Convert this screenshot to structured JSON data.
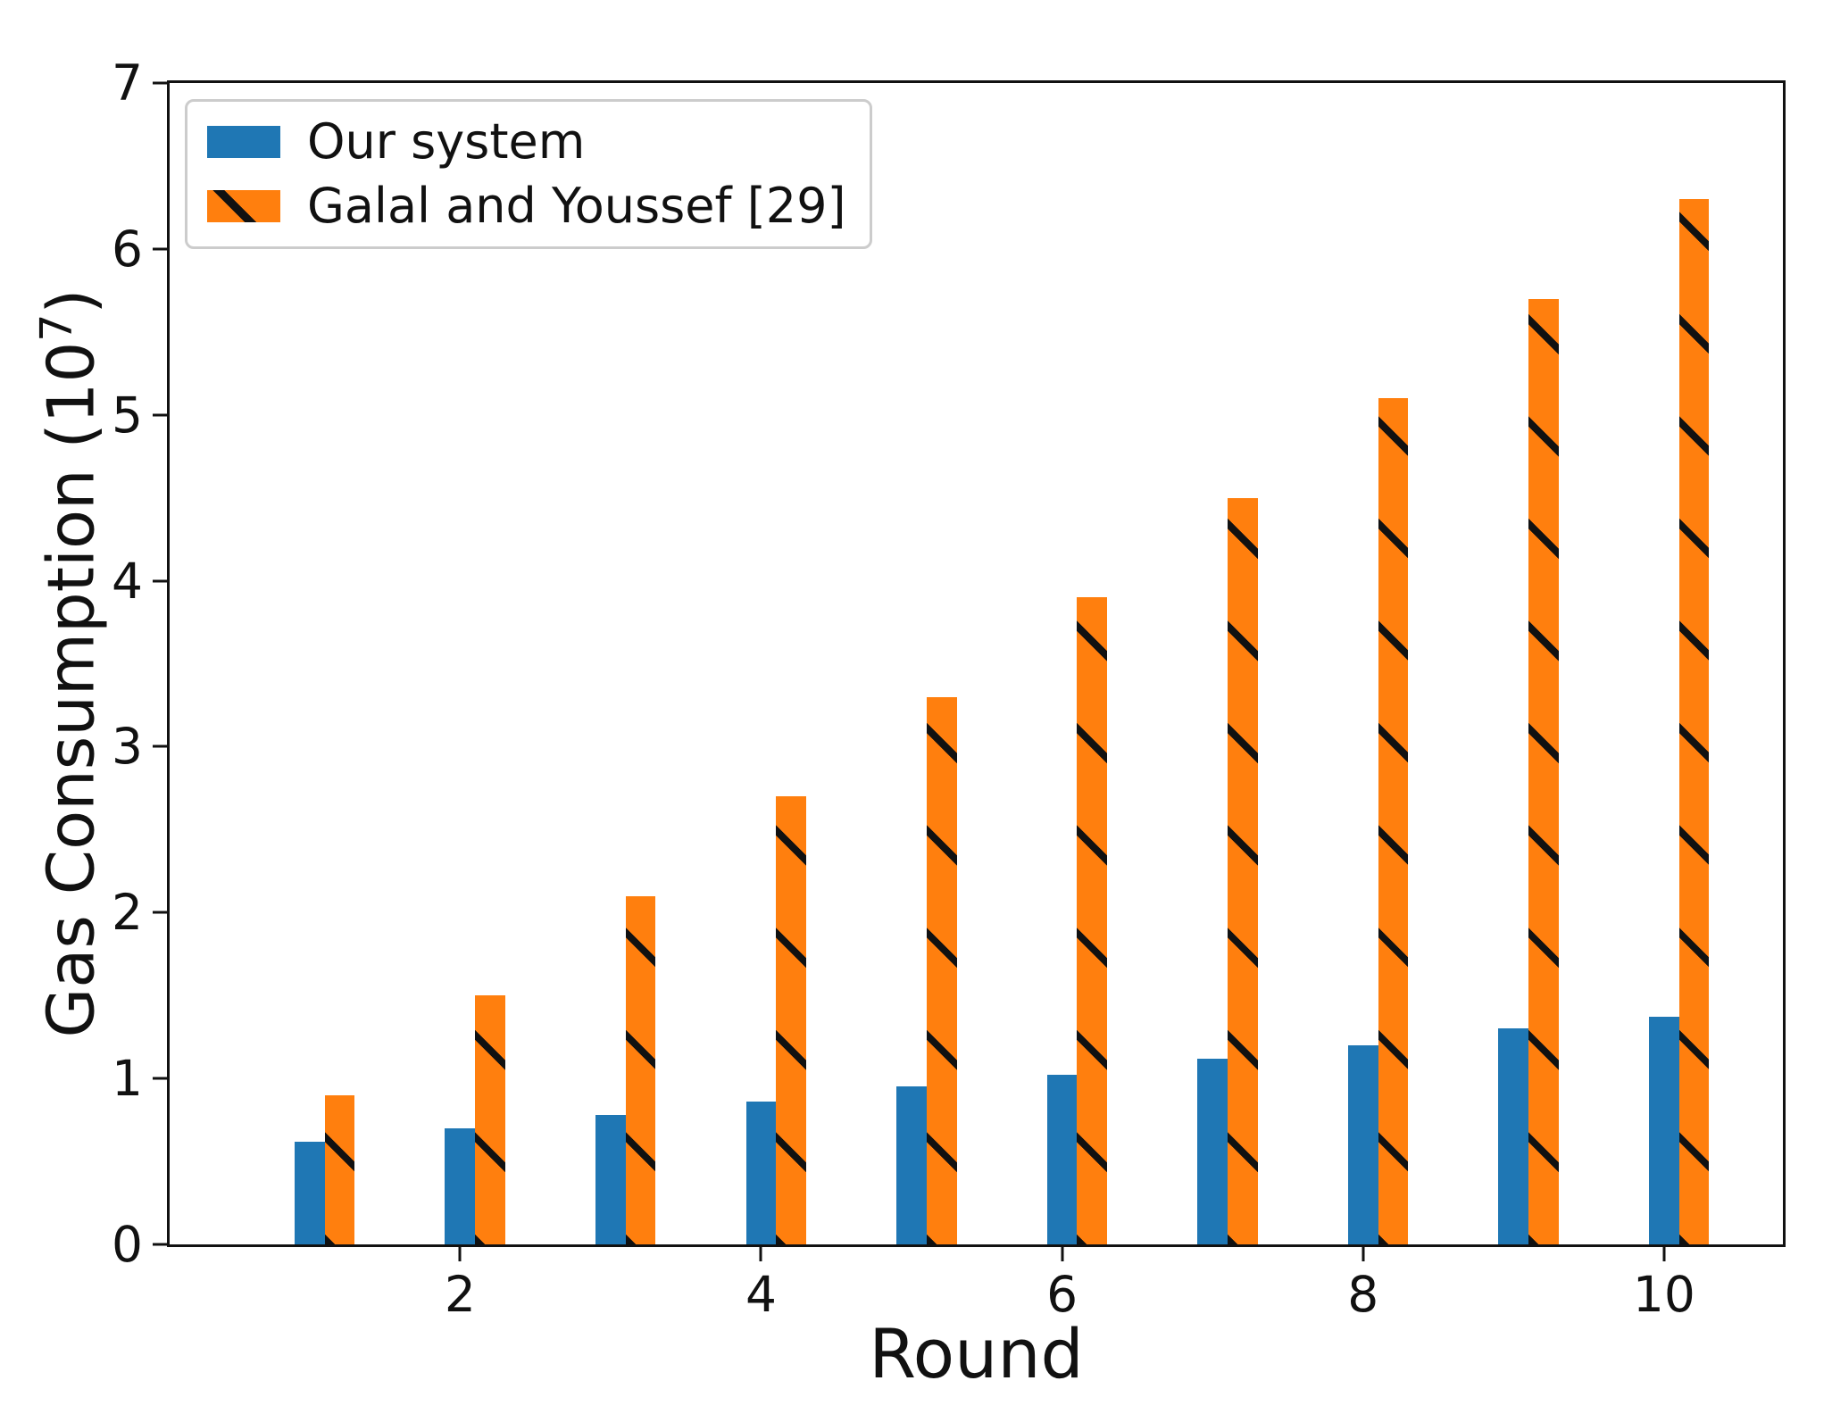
{
  "chart_data": {
    "type": "bar",
    "title": "",
    "xlabel": "Round",
    "ylabel": "Gas Consumption (10^7)",
    "ylabel_parts": {
      "prefix": "Gas Consumption (10",
      "superscript": "7",
      "suffix": ")"
    },
    "categories": [
      1,
      2,
      3,
      4,
      5,
      6,
      7,
      8,
      9,
      10
    ],
    "series": [
      {
        "name": "Our system",
        "color": "#1f77b4",
        "hatch": "none",
        "values": [
          0.62,
          0.7,
          0.78,
          0.86,
          0.95,
          1.02,
          1.12,
          1.2,
          1.3,
          1.37
        ]
      },
      {
        "name": "Galal and Youssef [29]",
        "color": "#ff7f0e",
        "hatch": "\\",
        "hatch_color": "#111111",
        "values": [
          0.9,
          1.5,
          2.1,
          2.7,
          3.3,
          3.9,
          4.5,
          5.1,
          5.7,
          6.3
        ]
      }
    ],
    "x_ticks": [
      2,
      4,
      6,
      8,
      10
    ],
    "y_ticks": [
      0,
      1,
      2,
      3,
      4,
      5,
      6,
      7
    ],
    "xlim": [
      0.07,
      10.79
    ],
    "ylim": [
      0,
      7
    ],
    "bar_width": 0.2,
    "grid": false,
    "legend_position": "upper left",
    "axis_color": "#111111",
    "background_color": "#ffffff"
  }
}
